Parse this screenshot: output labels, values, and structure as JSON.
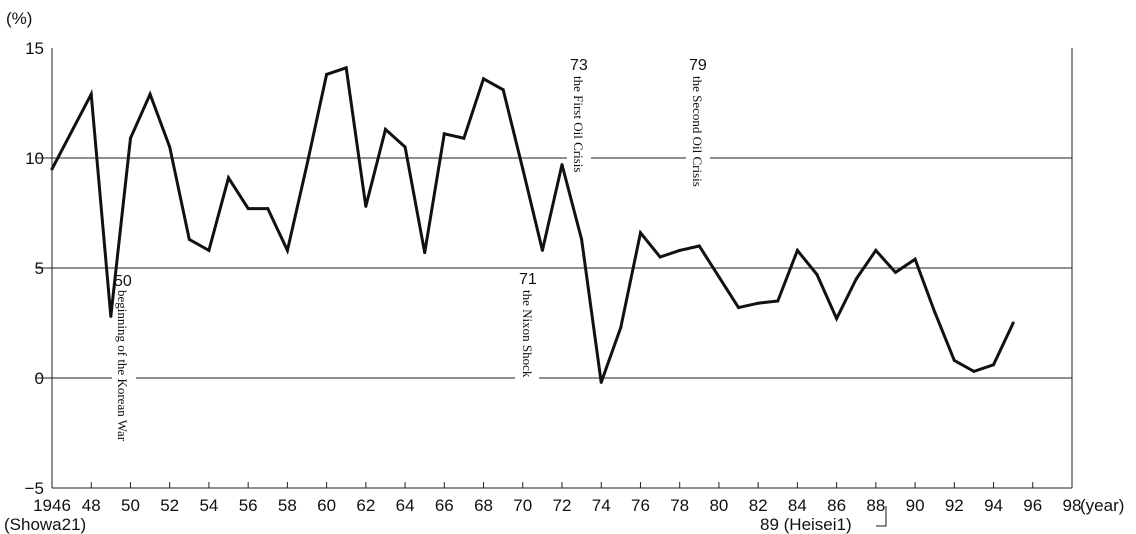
{
  "chart_data": {
    "type": "line",
    "ylabel": "(%)",
    "xlabel": "(year)",
    "ylim": [
      -5,
      15
    ],
    "xlim": [
      1946,
      1998
    ],
    "y_ticks": [
      -5,
      0,
      5,
      10,
      15
    ],
    "y_tick_labels": [
      "−5",
      "0",
      "5",
      "10",
      "15"
    ],
    "x_ticks": [
      1946,
      1948,
      1950,
      1952,
      1954,
      1956,
      1958,
      1960,
      1962,
      1964,
      1966,
      1968,
      1970,
      1972,
      1974,
      1976,
      1978,
      1980,
      1982,
      1984,
      1986,
      1988,
      1990,
      1992,
      1994,
      1996,
      1998
    ],
    "x_tick_labels": [
      "1946",
      "48",
      "50",
      "52",
      "54",
      "56",
      "58",
      "60",
      "62",
      "64",
      "66",
      "68",
      "70",
      "72",
      "74",
      "76",
      "78",
      "80",
      "82",
      "84",
      "86",
      "88",
      "90",
      "92",
      "94",
      "96",
      "98"
    ],
    "gridlines_y": [
      0,
      5,
      10
    ],
    "x_sublabel_start": "(Showa21)",
    "x_sublabel_heisei": "89 (Heisei1)",
    "series": [
      {
        "x": [
          1946,
          1948,
          1949,
          1950,
          1951,
          1952,
          1953,
          1954,
          1955,
          1956,
          1957,
          1958,
          1959,
          1960,
          1961,
          1962,
          1963,
          1964,
          1965,
          1966,
          1967,
          1968,
          1969,
          1970,
          1971,
          1972,
          1973,
          1974,
          1975,
          1976,
          1977,
          1978,
          1979,
          1980,
          1981,
          1982,
          1983,
          1984,
          1985,
          1986,
          1987,
          1988,
          1989,
          1990,
          1991,
          1992,
          1993,
          1994,
          1995
        ],
        "y": [
          9.5,
          12.9,
          2.8,
          10.9,
          12.9,
          10.5,
          6.3,
          5.8,
          9.1,
          7.7,
          7.7,
          5.8,
          9.7,
          13.8,
          14.1,
          7.8,
          11.3,
          10.5,
          5.7,
          11.1,
          10.9,
          13.6,
          13.1,
          9.5,
          5.8,
          9.7,
          6.3,
          -0.2,
          2.3,
          6.6,
          5.5,
          5.8,
          6.0,
          4.6,
          3.2,
          3.4,
          3.5,
          5.8,
          4.7,
          2.7,
          4.5,
          5.8,
          4.8,
          5.4,
          3.0,
          0.8,
          0.3,
          0.6,
          2.5
        ]
      }
    ],
    "annotations": [
      {
        "year": "50",
        "text": "beginning of the Korean War"
      },
      {
        "year": "71",
        "text": "the Nixon Shock"
      },
      {
        "year": "73",
        "text": "the First Oil Crisis"
      },
      {
        "year": "79",
        "text": "the Second Oil Crisis"
      }
    ]
  }
}
